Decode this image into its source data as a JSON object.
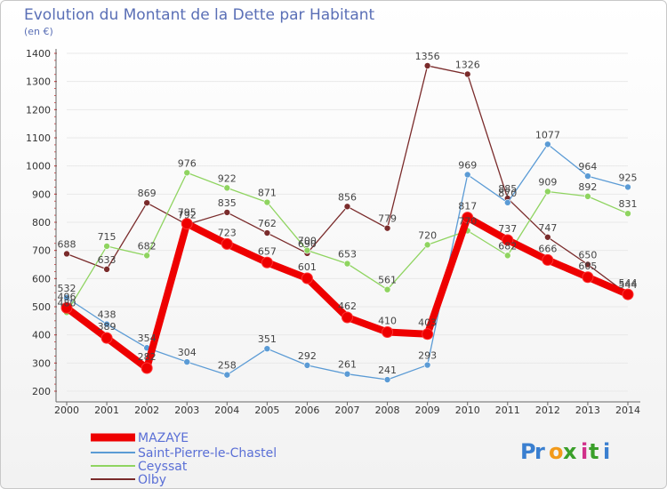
{
  "chart_data": {
    "type": "line",
    "title": "Evolution du Montant de la Dette par Habitant",
    "subtitle": "(en €)",
    "x": [
      "2000",
      "2001",
      "2002",
      "2003",
      "2004",
      "2005",
      "2006",
      "2007",
      "2008",
      "2009",
      "2010",
      "2011",
      "2012",
      "2013",
      "2014"
    ],
    "yticks": [
      200,
      300,
      400,
      500,
      600,
      700,
      800,
      900,
      1000,
      1100,
      1200,
      1300,
      1400
    ],
    "ylim": [
      200,
      1400
    ],
    "series": [
      {
        "name": "Olby",
        "color": "#7a2b2b",
        "width": 1.3,
        "marker": 3.5,
        "values": [
          688,
          633,
          869,
          792,
          835,
          762,
          690,
          856,
          779,
          1356,
          1326,
          885,
          747,
          650,
          544
        ]
      },
      {
        "name": "Saint-Pierre-le-Chastel",
        "color": "#5b9bd5",
        "width": 1.3,
        "marker": 3.5,
        "values": [
          532,
          438,
          354,
          304,
          258,
          351,
          292,
          261,
          241,
          293,
          969,
          870,
          1077,
          964,
          925
        ]
      },
      {
        "name": "Ceyssat",
        "color": "#8fd460",
        "width": 1.3,
        "marker": 3.5,
        "values": [
          480,
          715,
          682,
          976,
          922,
          871,
          700,
          653,
          561,
          720,
          770,
          682,
          909,
          892,
          831
        ]
      },
      {
        "name": "MAZAYE",
        "color": "#ee0000",
        "width": 8,
        "marker": 6,
        "values": [
          496,
          389,
          282,
          795,
          723,
          657,
          601,
          462,
          410,
          403,
          817,
          737,
          666,
          605,
          544
        ]
      }
    ],
    "legend": [
      "MAZAYE",
      "Saint-Pierre-le-Chastel",
      "Ceyssat",
      "Olby"
    ],
    "grid": true,
    "legend_position": "bottom-left",
    "brand": "Proxiti"
  }
}
